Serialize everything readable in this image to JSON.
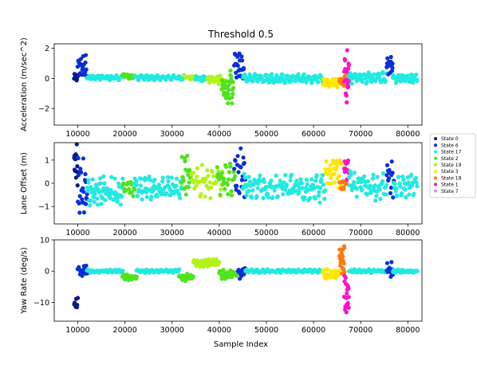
{
  "chart_data": {
    "type": "scatter",
    "title": "Threshold 0.5",
    "xlabel": "Sample Index",
    "xlim": [
      5000,
      83000
    ],
    "x_ticks": [
      10000,
      20000,
      30000,
      40000,
      50000,
      60000,
      70000,
      80000
    ],
    "grid": false,
    "legend_position": "right",
    "legend": [
      {
        "name": "State 0",
        "color": "#0a1a8c"
      },
      {
        "name": "State 6",
        "color": "#0a2fd6"
      },
      {
        "name": "State 17",
        "color": "#21eae0"
      },
      {
        "name": "State 2",
        "color": "#4fe31c"
      },
      {
        "name": "State 19",
        "color": "#b4f21a"
      },
      {
        "name": "State 3",
        "color": "#ffe600"
      },
      {
        "name": "State 18",
        "color": "#ff7a10"
      },
      {
        "name": "State 1",
        "color": "#ff12c6"
      },
      {
        "name": "State 7",
        "color": "#ee82ee"
      }
    ],
    "subplots": [
      {
        "ylabel": "Acceleration (m/sec^2)",
        "ylim": [
          -3.1,
          2.3
        ],
        "y_ticks": [
          -2,
          0,
          2
        ],
        "segments": [
          {
            "state": "State 0",
            "x0": 9200,
            "x1": 10000,
            "base": 0.05,
            "amp": 0.1,
            "noise": 0.15,
            "n": 10
          },
          {
            "state": "State 6",
            "x0": 10000,
            "x1": 12000,
            "base": 0.8,
            "amp": 0.5,
            "noise": 0.3,
            "n": 22
          },
          {
            "state": "State 17",
            "x0": 12000,
            "x1": 19500,
            "base": 0.05,
            "amp": 0.1,
            "noise": 0.08,
            "n": 55
          },
          {
            "state": "State 2",
            "x0": 19500,
            "x1": 22000,
            "base": 0.15,
            "amp": 0.1,
            "noise": 0.1,
            "n": 16
          },
          {
            "state": "State 17",
            "x0": 22000,
            "x1": 32500,
            "base": 0.05,
            "amp": 0.1,
            "noise": 0.08,
            "n": 70
          },
          {
            "state": "State 19",
            "x0": 32500,
            "x1": 35000,
            "base": 0.1,
            "amp": 0.1,
            "noise": 0.1,
            "n": 16
          },
          {
            "state": "State 17",
            "x0": 35000,
            "x1": 37500,
            "base": 0.0,
            "amp": 0.1,
            "noise": 0.1,
            "n": 16
          },
          {
            "state": "State 19",
            "x0": 37500,
            "x1": 41000,
            "base": -0.1,
            "amp": 0.2,
            "noise": 0.15,
            "n": 24
          },
          {
            "state": "State 2",
            "x0": 40500,
            "x1": 43000,
            "base": -0.5,
            "amp": 0.6,
            "noise": 0.9,
            "n": 36
          },
          {
            "state": "State 6",
            "x0": 43200,
            "x1": 45200,
            "base": 0.8,
            "amp": 0.6,
            "noise": 0.45,
            "n": 24
          },
          {
            "state": "State 17",
            "x0": 45000,
            "x1": 62000,
            "base": 0.0,
            "amp": 0.2,
            "noise": 0.12,
            "n": 120
          },
          {
            "state": "State 3",
            "x0": 62000,
            "x1": 65500,
            "base": -0.3,
            "amp": 0.2,
            "noise": 0.12,
            "n": 26
          },
          {
            "state": "State 18",
            "x0": 65500,
            "x1": 67000,
            "base": -0.15,
            "amp": 0.2,
            "noise": 0.15,
            "n": 12
          },
          {
            "state": "State 1",
            "x0": 66500,
            "x1": 67600,
            "base": 0.0,
            "amp": 0.6,
            "noise": 1.5,
            "n": 22
          },
          {
            "state": "State 17",
            "x0": 67500,
            "x1": 75500,
            "base": 0.05,
            "amp": 0.25,
            "noise": 0.18,
            "n": 60
          },
          {
            "state": "State 6",
            "x0": 75500,
            "x1": 76800,
            "base": 0.9,
            "amp": 0.4,
            "noise": 0.35,
            "n": 16
          },
          {
            "state": "State 17",
            "x0": 76800,
            "x1": 82000,
            "base": 0.0,
            "amp": 0.2,
            "noise": 0.12,
            "n": 38
          }
        ]
      },
      {
        "ylabel": "Lane Offset (m)",
        "ylim": [
          -1.75,
          1.75
        ],
        "y_ticks": [
          -1,
          0,
          1
        ],
        "segments": [
          {
            "state": "State 0",
            "x0": 9200,
            "x1": 10000,
            "base": 0.9,
            "amp": 0.5,
            "noise": 0.5,
            "n": 14
          },
          {
            "state": "State 6",
            "x0": 10000,
            "x1": 12000,
            "base": -0.2,
            "amp": 0.8,
            "noise": 0.6,
            "n": 24
          },
          {
            "state": "State 17",
            "x0": 12000,
            "x1": 19500,
            "base": -0.35,
            "amp": 0.3,
            "noise": 0.35,
            "n": 70
          },
          {
            "state": "State 2",
            "x0": 19500,
            "x1": 22000,
            "base": -0.2,
            "amp": 0.2,
            "noise": 0.25,
            "n": 16
          },
          {
            "state": "State 17",
            "x0": 22000,
            "x1": 32000,
            "base": -0.2,
            "amp": 0.25,
            "noise": 0.3,
            "n": 80
          },
          {
            "state": "State 2",
            "x0": 32000,
            "x1": 34000,
            "base": 0.3,
            "amp": 0.5,
            "noise": 0.4,
            "n": 20
          },
          {
            "state": "State 19",
            "x0": 34000,
            "x1": 41000,
            "base": 0.1,
            "amp": 0.4,
            "noise": 0.35,
            "n": 45
          },
          {
            "state": "State 2",
            "x0": 39500,
            "x1": 43500,
            "base": 0.2,
            "amp": 0.4,
            "noise": 0.35,
            "n": 30
          },
          {
            "state": "State 6",
            "x0": 43200,
            "x1": 45500,
            "base": 0.4,
            "amp": 0.7,
            "noise": 0.5,
            "n": 22
          },
          {
            "state": "State 17",
            "x0": 45000,
            "x1": 62500,
            "base": -0.2,
            "amp": 0.3,
            "noise": 0.35,
            "n": 130
          },
          {
            "state": "State 3",
            "x0": 62500,
            "x1": 66000,
            "base": 0.4,
            "amp": 0.4,
            "noise": 0.35,
            "n": 30
          },
          {
            "state": "State 18",
            "x0": 65500,
            "x1": 67000,
            "base": -0.1,
            "amp": 0.1,
            "noise": 0.15,
            "n": 10
          },
          {
            "state": "State 1",
            "x0": 66500,
            "x1": 67500,
            "base": 0.7,
            "amp": 0.5,
            "noise": 0.4,
            "n": 14
          },
          {
            "state": "State 17",
            "x0": 67500,
            "x1": 75500,
            "base": -0.1,
            "amp": 0.3,
            "noise": 0.35,
            "n": 60
          },
          {
            "state": "State 6",
            "x0": 75500,
            "x1": 77000,
            "base": 0.2,
            "amp": 0.5,
            "noise": 0.4,
            "n": 14
          },
          {
            "state": "State 17",
            "x0": 77000,
            "x1": 82000,
            "base": -0.15,
            "amp": 0.3,
            "noise": 0.3,
            "n": 38
          }
        ]
      },
      {
        "ylabel": "Yaw Rate (deg/s)",
        "ylim": [
          -16,
          10
        ],
        "y_ticks": [
          -10,
          0,
          10
        ],
        "segments": [
          {
            "state": "State 0",
            "x0": 9200,
            "x1": 10000,
            "base": -10.5,
            "amp": 1.0,
            "noise": 1.0,
            "n": 8
          },
          {
            "state": "State 6",
            "x0": 10000,
            "x1": 12000,
            "base": 0.0,
            "amp": 1.0,
            "noise": 1.0,
            "n": 20
          },
          {
            "state": "State 17",
            "x0": 12000,
            "x1": 19500,
            "base": 0.0,
            "amp": 0.3,
            "noise": 0.3,
            "n": 60
          },
          {
            "state": "State 2",
            "x0": 19500,
            "x1": 22500,
            "base": -2.0,
            "amp": 0.5,
            "noise": 0.5,
            "n": 24
          },
          {
            "state": "State 17",
            "x0": 22500,
            "x1": 31500,
            "base": 0.0,
            "amp": 0.3,
            "noise": 0.3,
            "n": 70
          },
          {
            "state": "State 2",
            "x0": 31500,
            "x1": 34500,
            "base": -2.0,
            "amp": 0.6,
            "noise": 0.6,
            "n": 24
          },
          {
            "state": "State 19",
            "x0": 34500,
            "x1": 40000,
            "base": 2.8,
            "amp": 0.8,
            "noise": 0.6,
            "n": 50
          },
          {
            "state": "State 2",
            "x0": 40000,
            "x1": 44000,
            "base": -1.0,
            "amp": 0.8,
            "noise": 0.8,
            "n": 36
          },
          {
            "state": "State 6",
            "x0": 44000,
            "x1": 45500,
            "base": -0.5,
            "amp": 1.0,
            "noise": 1.0,
            "n": 18
          },
          {
            "state": "State 17",
            "x0": 45500,
            "x1": 62000,
            "base": 0.0,
            "amp": 0.3,
            "noise": 0.3,
            "n": 120
          },
          {
            "state": "State 3",
            "x0": 62000,
            "x1": 65500,
            "base": -1.0,
            "amp": 1.0,
            "noise": 0.9,
            "n": 28
          },
          {
            "state": "State 18",
            "x0": 65500,
            "x1": 66600,
            "base": 4.0,
            "amp": 3.0,
            "noise": 2.5,
            "n": 20
          },
          {
            "state": "State 1",
            "x0": 66500,
            "x1": 67500,
            "base": -8.0,
            "amp": 4.0,
            "noise": 3.0,
            "n": 20
          },
          {
            "state": "State 17",
            "x0": 67500,
            "x1": 75500,
            "base": 0.0,
            "amp": 0.3,
            "noise": 0.3,
            "n": 60
          },
          {
            "state": "State 6",
            "x0": 75500,
            "x1": 76800,
            "base": 0.5,
            "amp": 1.5,
            "noise": 1.2,
            "n": 12
          },
          {
            "state": "State 17",
            "x0": 76800,
            "x1": 82000,
            "base": 0.0,
            "amp": 0.3,
            "noise": 0.3,
            "n": 38
          }
        ]
      }
    ]
  }
}
